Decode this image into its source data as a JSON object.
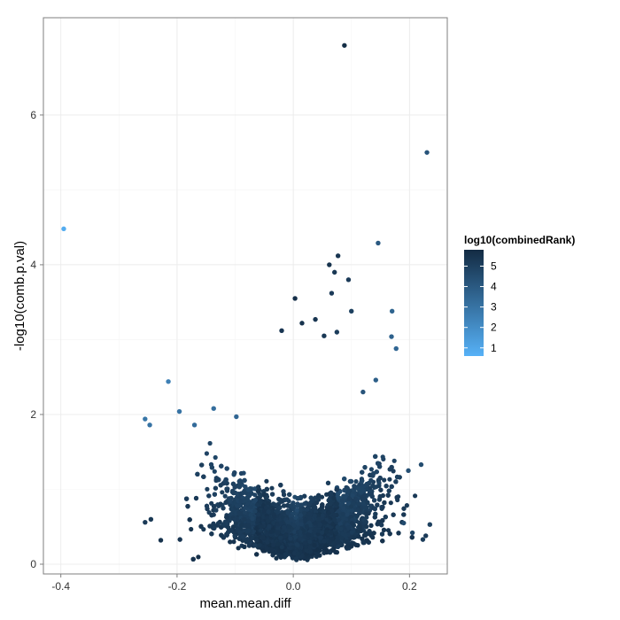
{
  "chart_data": {
    "type": "scatter",
    "xlabel": "mean.mean.diff",
    "ylabel": "-log10(comb.p.val)",
    "xlim": [
      -0.43,
      0.265
    ],
    "ylim": [
      -0.13,
      7.3
    ],
    "x_ticks": [
      -0.4,
      -0.2,
      0.0,
      0.2
    ],
    "x_tick_labels": [
      "-0.4",
      "-0.2",
      "0.0",
      "0.2"
    ],
    "y_ticks": [
      0,
      2,
      4,
      6
    ],
    "y_tick_labels": [
      "0",
      "2",
      "4",
      "6"
    ],
    "grid": true,
    "legend": {
      "title": "log10(combinedRank)",
      "placement": "right",
      "min": 0.6,
      "max": 5.8,
      "ticks": [
        1,
        2,
        3,
        4,
        5
      ],
      "tick_labels": [
        "1",
        "2",
        "3",
        "4",
        "5"
      ],
      "color_low": "#56B1F7",
      "color_high": "#132B43"
    },
    "cloud": {
      "description": "dense volcano-shaped cluster of points",
      "x_center": 0.01,
      "x_extent": [
        -0.27,
        0.21
      ],
      "y_extent": [
        0.0,
        3.0
      ]
    },
    "points": [
      {
        "x": 0.088,
        "y": 6.93,
        "c": 5.7
      },
      {
        "x": 0.23,
        "y": 5.5,
        "c": 4.2
      },
      {
        "x": -0.395,
        "y": 4.48,
        "c": 0.8
      },
      {
        "x": 0.146,
        "y": 4.29,
        "c": 4.0
      },
      {
        "x": 0.077,
        "y": 4.12,
        "c": 5.4
      },
      {
        "x": 0.062,
        "y": 4.0,
        "c": 5.5
      },
      {
        "x": 0.095,
        "y": 3.8,
        "c": 5.2
      },
      {
        "x": 0.071,
        "y": 3.9,
        "c": 5.3
      },
      {
        "x": 0.066,
        "y": 3.62,
        "c": 5.2
      },
      {
        "x": 0.003,
        "y": 3.55,
        "c": 5.6
      },
      {
        "x": 0.17,
        "y": 3.38,
        "c": 3.6
      },
      {
        "x": 0.1,
        "y": 3.38,
        "c": 5.0
      },
      {
        "x": 0.169,
        "y": 3.04,
        "c": 3.7
      },
      {
        "x": 0.177,
        "y": 2.88,
        "c": 3.5
      },
      {
        "x": -0.215,
        "y": 2.44,
        "c": 2.5
      },
      {
        "x": -0.196,
        "y": 2.04,
        "c": 3.0
      },
      {
        "x": -0.137,
        "y": 2.08,
        "c": 3.2
      },
      {
        "x": -0.255,
        "y": 1.94,
        "c": 2.9
      },
      {
        "x": -0.247,
        "y": 1.86,
        "c": 3.0
      },
      {
        "x": -0.17,
        "y": 1.86,
        "c": 3.3
      },
      {
        "x": -0.098,
        "y": 1.97,
        "c": 3.5
      },
      {
        "x": 0.142,
        "y": 2.46,
        "c": 3.8
      },
      {
        "x": 0.12,
        "y": 2.3,
        "c": 4.2
      },
      {
        "x": 0.22,
        "y": 1.33,
        "c": 4.5
      },
      {
        "x": 0.198,
        "y": 1.25,
        "c": 4.4
      },
      {
        "x": 0.235,
        "y": 0.53,
        "c": 5.0
      },
      {
        "x": 0.228,
        "y": 0.38,
        "c": 5.2
      },
      {
        "x": 0.223,
        "y": 0.33,
        "c": 5.1
      },
      {
        "x": -0.255,
        "y": 0.56,
        "c": 5.2
      },
      {
        "x": -0.245,
        "y": 0.6,
        "c": 5.3
      },
      {
        "x": -0.228,
        "y": 0.32,
        "c": 5.5
      },
      {
        "x": -0.195,
        "y": 0.33,
        "c": 5.4
      },
      {
        "x": 0.038,
        "y": 3.27,
        "c": 5.4
      },
      {
        "x": 0.015,
        "y": 3.22,
        "c": 5.5
      },
      {
        "x": 0.075,
        "y": 3.1,
        "c": 5.1
      },
      {
        "x": 0.053,
        "y": 3.05,
        "c": 5.3
      },
      {
        "x": -0.02,
        "y": 3.12,
        "c": 5.4
      },
      {
        "x": 0.19,
        "y": 0.55,
        "c": 4.6
      },
      {
        "x": 0.205,
        "y": 0.42,
        "c": 4.8
      }
    ]
  }
}
